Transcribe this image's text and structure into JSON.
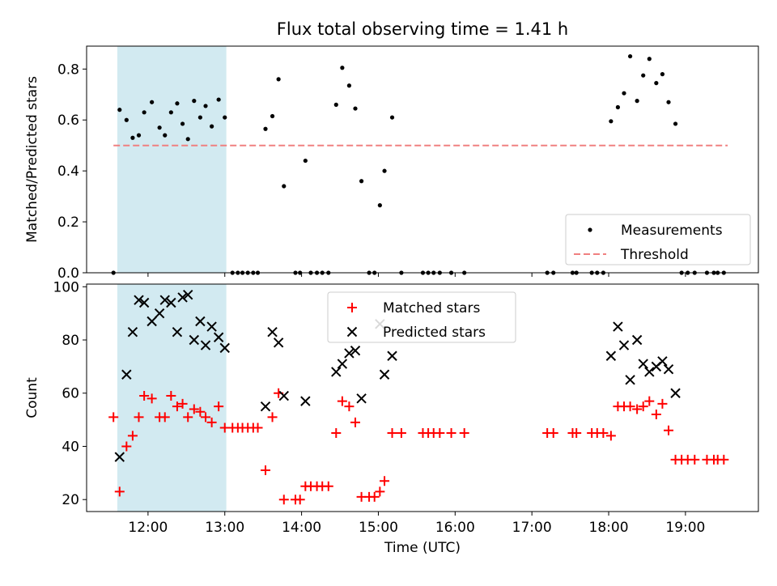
{
  "chart_data": [
    {
      "type": "scatter",
      "title": "Flux total observing time = 1.41 h",
      "ylabel": "Matched/Predicted stars",
      "xlabel": "",
      "xlim": [
        11.2,
        19.95
      ],
      "ylim": [
        0,
        0.89
      ],
      "yticks": [
        0.0,
        0.2,
        0.4,
        0.6,
        0.8
      ],
      "ytick_labels": [
        "0.0",
        "0.2",
        "0.4",
        "0.6",
        "0.8"
      ],
      "xticks": [
        12,
        13,
        14,
        15,
        16,
        17,
        18,
        19
      ],
      "shaded_interval": {
        "x": [
          11.6,
          13.02
        ],
        "color": "#add8e6"
      },
      "legend_position": "lower-right",
      "series": [
        {
          "name": "Measurements",
          "style": "dot",
          "color": "#000000",
          "x": [
            11.55,
            11.63,
            11.72,
            11.8,
            11.88,
            11.95,
            12.05,
            12.15,
            12.22,
            12.3,
            12.38,
            12.45,
            12.52,
            12.6,
            12.68,
            12.75,
            12.83,
            12.92,
            13.0,
            13.1,
            13.17,
            13.23,
            13.3,
            13.37,
            13.43,
            13.53,
            13.62,
            13.7,
            13.77,
            13.92,
            13.98,
            14.05,
            14.12,
            14.2,
            14.27,
            14.35,
            14.45,
            14.53,
            14.62,
            14.7,
            14.78,
            14.88,
            14.95,
            15.02,
            15.08,
            15.18,
            15.3,
            15.58,
            15.65,
            15.72,
            15.8,
            15.95,
            16.12,
            17.2,
            17.28,
            17.53,
            17.58,
            17.78,
            17.85,
            17.93,
            18.03,
            18.12,
            18.2,
            18.28,
            18.37,
            18.45,
            18.53,
            18.62,
            18.7,
            18.78,
            18.87,
            18.95,
            19.03,
            19.12,
            19.28,
            19.37,
            19.42,
            19.5
          ],
          "y": [
            0.0,
            0.64,
            0.6,
            0.53,
            0.54,
            0.63,
            0.67,
            0.57,
            0.54,
            0.63,
            0.665,
            0.585,
            0.525,
            0.675,
            0.61,
            0.655,
            0.575,
            0.68,
            0.61,
            0.0,
            0.0,
            0.0,
            0.0,
            0.0,
            0.0,
            0.565,
            0.615,
            0.76,
            0.34,
            0.0,
            0.0,
            0.44,
            0.0,
            0.0,
            0.0,
            0.0,
            0.66,
            0.805,
            0.735,
            0.645,
            0.36,
            0.0,
            0.0,
            0.265,
            0.4,
            0.61,
            0.0,
            0.0,
            0.0,
            0.0,
            0.0,
            0.0,
            0.0,
            0.0,
            0.0,
            0.0,
            0.0,
            0.0,
            0.0,
            0.0,
            0.595,
            0.65,
            0.705,
            0.85,
            0.675,
            0.775,
            0.84,
            0.745,
            0.78,
            0.67,
            0.585,
            0.0,
            0.0,
            0.0,
            0.0,
            0.0,
            0.0,
            0.0
          ]
        },
        {
          "name": "Threshold",
          "style": "dashed",
          "color": "#f08080",
          "x": [
            11.55,
            19.55
          ],
          "y": [
            0.5,
            0.5
          ]
        }
      ]
    },
    {
      "type": "scatter",
      "title": "",
      "ylabel": "Count",
      "xlabel": "Time (UTC)",
      "xlim": [
        11.2,
        19.95
      ],
      "ylim": [
        15.5,
        101
      ],
      "yticks": [
        20,
        40,
        60,
        80,
        100
      ],
      "ytick_labels": [
        "20",
        "40",
        "60",
        "80",
        "100"
      ],
      "xticks": [
        12,
        13,
        14,
        15,
        16,
        17,
        18,
        19
      ],
      "xtick_labels": [
        "12:00",
        "13:00",
        "14:00",
        "15:00",
        "16:00",
        "17:00",
        "18:00",
        "19:00"
      ],
      "shaded_interval": {
        "x": [
          11.6,
          13.02
        ],
        "color": "#add8e6"
      },
      "legend_position": "upper-center",
      "series": [
        {
          "name": "Matched stars",
          "style": "plus",
          "color": "#ff0000",
          "x": [
            11.55,
            11.63,
            11.72,
            11.8,
            11.88,
            11.95,
            12.05,
            12.15,
            12.22,
            12.3,
            12.38,
            12.45,
            12.52,
            12.6,
            12.68,
            12.75,
            12.83,
            12.92,
            13.0,
            13.1,
            13.17,
            13.23,
            13.3,
            13.37,
            13.43,
            13.53,
            13.62,
            13.7,
            13.77,
            13.92,
            13.98,
            14.05,
            14.12,
            14.2,
            14.27,
            14.35,
            14.45,
            14.53,
            14.62,
            14.7,
            14.78,
            14.88,
            14.95,
            15.02,
            15.08,
            15.18,
            15.3,
            15.58,
            15.65,
            15.72,
            15.8,
            15.95,
            16.12,
            17.2,
            17.28,
            17.53,
            17.58,
            17.78,
            17.85,
            17.93,
            18.03,
            18.12,
            18.2,
            18.28,
            18.37,
            18.45,
            18.53,
            18.62,
            18.7,
            18.78,
            18.87,
            18.95,
            19.03,
            19.12,
            19.28,
            19.37,
            19.42,
            19.5
          ],
          "y": [
            51,
            23,
            40,
            44,
            51,
            59,
            58,
            51,
            51,
            59,
            55,
            56,
            51,
            54,
            53,
            51,
            49,
            55,
            47,
            47,
            47,
            47,
            47,
            47,
            47,
            31,
            51,
            60,
            20,
            20,
            20,
            25,
            25,
            25,
            25,
            25,
            45,
            57,
            55,
            49,
            21,
            21,
            21,
            23,
            27,
            45,
            45,
            45,
            45,
            45,
            45,
            45,
            45,
            45,
            45,
            45,
            45,
            45,
            45,
            45,
            44,
            55,
            55,
            55,
            54,
            55,
            57,
            52,
            56,
            46,
            35,
            35,
            35,
            35,
            35,
            35,
            35,
            35
          ]
        },
        {
          "name": "Predicted stars",
          "style": "cross",
          "color": "#000000",
          "x": [
            11.63,
            11.72,
            11.8,
            11.88,
            11.95,
            12.05,
            12.15,
            12.22,
            12.3,
            12.38,
            12.45,
            12.52,
            12.6,
            12.68,
            12.75,
            12.83,
            12.92,
            13.0,
            13.53,
            13.62,
            13.7,
            13.77,
            14.05,
            14.45,
            14.53,
            14.62,
            14.7,
            14.78,
            15.02,
            15.08,
            15.18,
            18.03,
            18.12,
            18.2,
            18.28,
            18.37,
            18.45,
            18.53,
            18.62,
            18.7,
            18.78,
            18.87
          ],
          "y": [
            36,
            67,
            83,
            95,
            94,
            87,
            90,
            95,
            94,
            83,
            96,
            97,
            80,
            87,
            78,
            85,
            81,
            77,
            55,
            83,
            79,
            59,
            57,
            68,
            71,
            75,
            76,
            58,
            86,
            67,
            74,
            74,
            85,
            78,
            65,
            80,
            71,
            68,
            70,
            72,
            69,
            60
          ]
        }
      ]
    }
  ]
}
